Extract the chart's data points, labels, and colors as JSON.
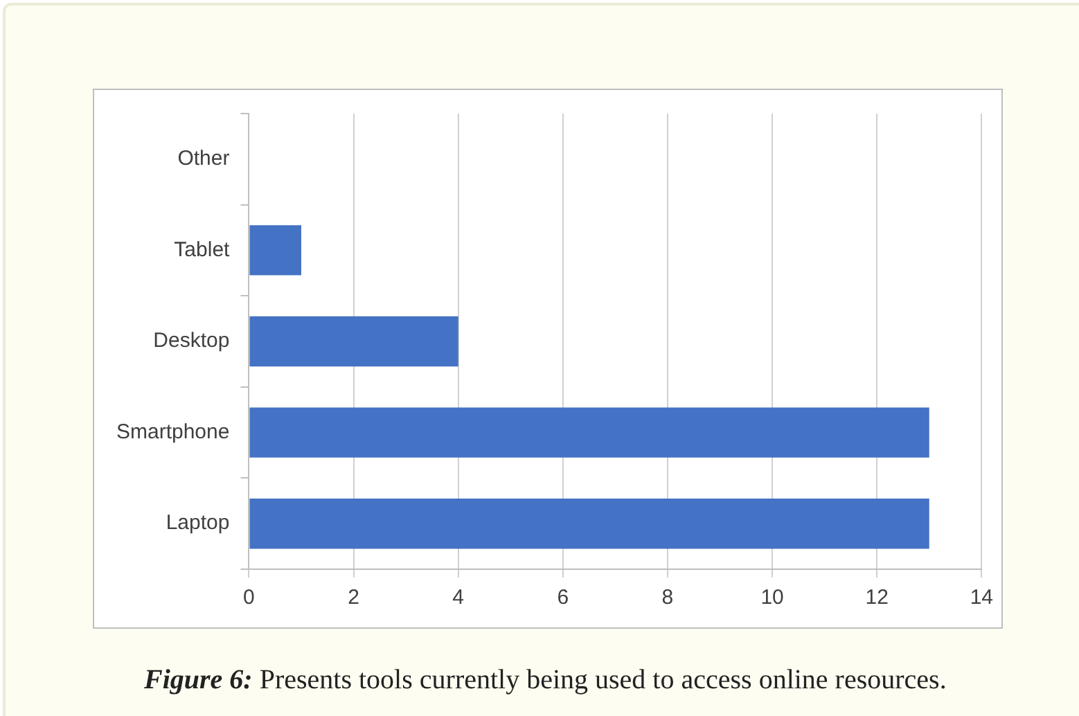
{
  "chart_data": {
    "type": "bar",
    "orientation": "horizontal",
    "categories": [
      "Other",
      "Tablet",
      "Desktop",
      "Smartphone",
      "Laptop"
    ],
    "values": [
      0,
      1,
      4,
      13,
      13
    ],
    "color": "#4472c4",
    "xlim": [
      0,
      14
    ],
    "xticks": [
      0,
      2,
      4,
      6,
      8,
      10,
      12,
      14
    ],
    "grid": "x",
    "legend": false,
    "annotations": [
      "Figure 6:",
      "Presents tools currently being used to access online resources."
    ]
  }
}
